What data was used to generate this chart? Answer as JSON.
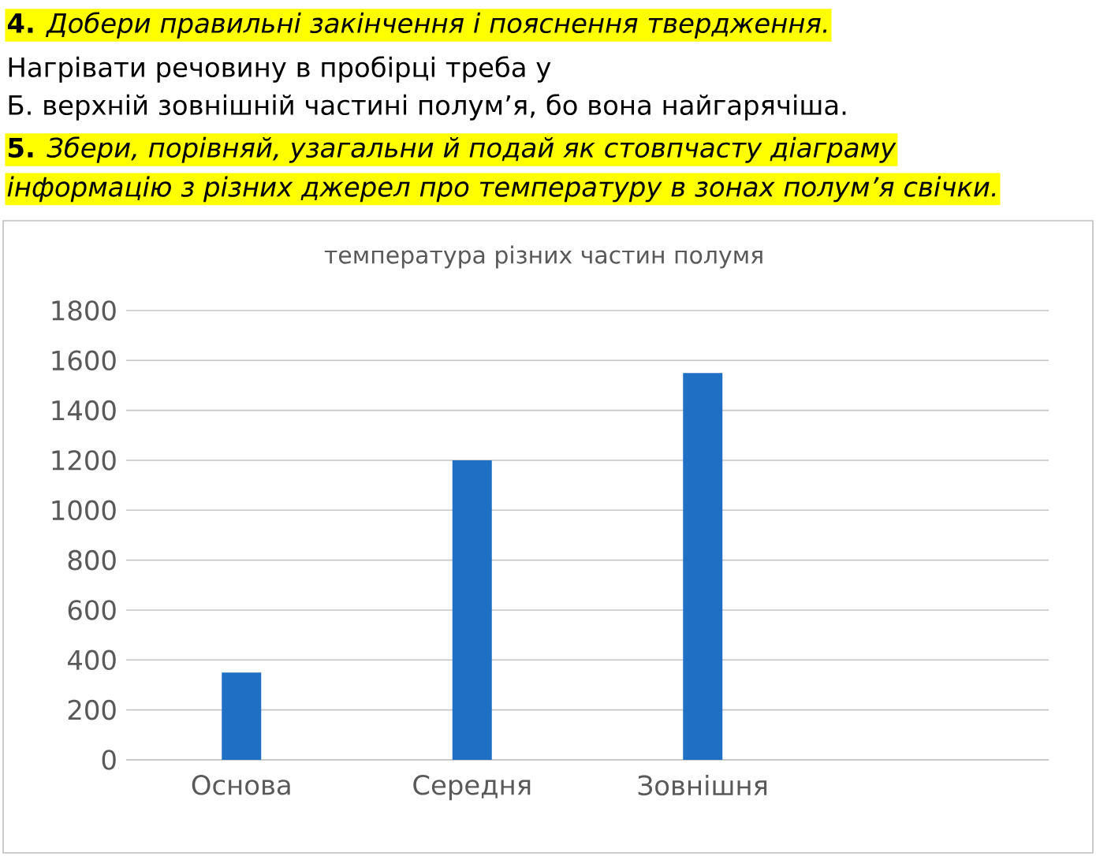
{
  "chart_data": {
    "type": "bar",
    "title": "температура різних частин полумя",
    "categories": [
      "Основа",
      "Середня",
      "Зовнішня",
      null
    ],
    "values": [
      350,
      1200,
      1550,
      null
    ],
    "color": "#1f6fc5",
    "ylim": [
      0,
      1800
    ],
    "yticks": [
      0,
      200,
      400,
      600,
      800,
      1000,
      1200,
      1400,
      1600,
      1800
    ],
    "grid": "y",
    "annotations": [
      "**4.** *Добери правильні закінчення і пояснення твердження.*",
      "Нагрівати речовину в пробірці треба у",
      "Б. верхній зовнішній частині полум’я, бо вона найгарячіша.",
      "**5.** *Збери, порівняй, узагальни й подай як стовпчасту діаграму*",
      "*інформацію з різних джерел про температуру в зонах полум’я свічки.*"
    ]
  }
}
